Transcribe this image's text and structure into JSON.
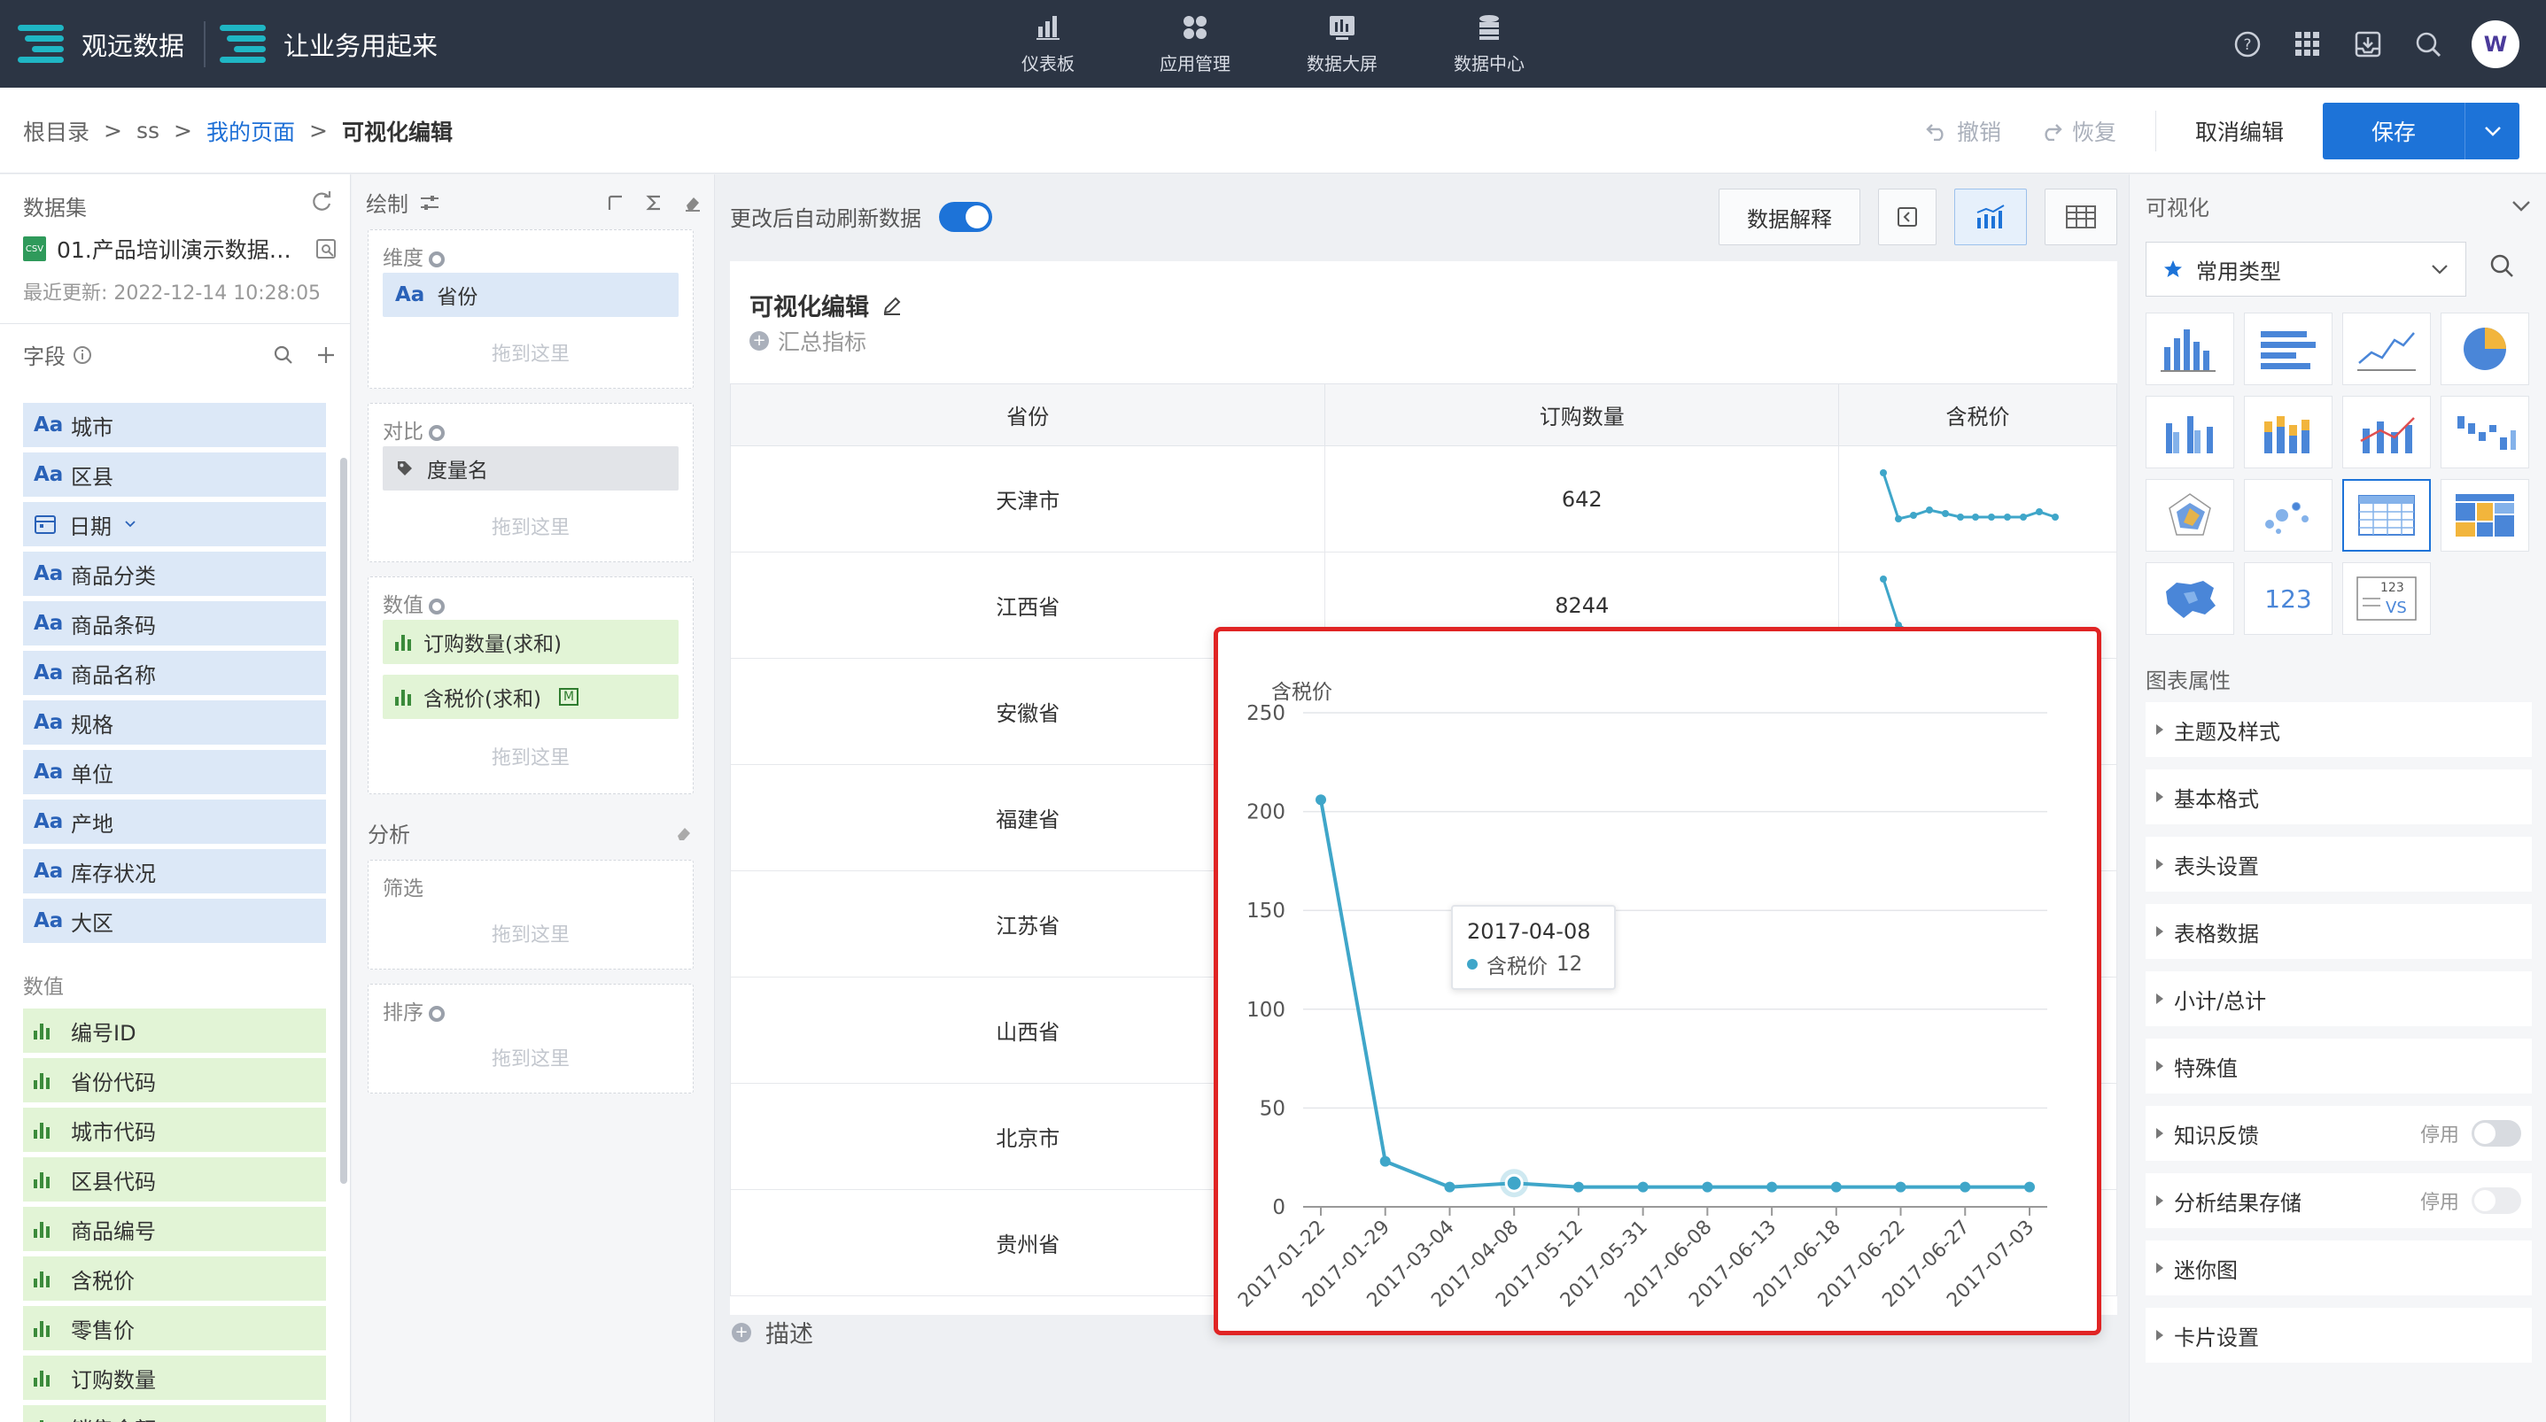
{
  "topbar": {
    "brand1": "观远数据",
    "brand2": "让业务用起来",
    "nav": [
      {
        "label": "仪表板",
        "icon": "dashboard-icon"
      },
      {
        "label": "应用管理",
        "icon": "apps-icon"
      },
      {
        "label": "数据大屏",
        "icon": "screen-icon"
      },
      {
        "label": "数据中心",
        "icon": "database-icon"
      }
    ],
    "icons": [
      "help-icon",
      "grid-icon",
      "download-icon",
      "search-icon"
    ],
    "avatar_text": "W"
  },
  "breadcrumb": {
    "items": [
      "根目录",
      "ss",
      "我的页面",
      "可视化编辑"
    ],
    "sep": ">"
  },
  "actions": {
    "undo": "撤销",
    "redo": "恢复",
    "cancel": "取消编辑",
    "save": "保存"
  },
  "dataset": {
    "title": "数据集",
    "file_name": "01.产品培训演示数据…",
    "file_badge": "CSV",
    "updated": "最近更新: 2022-12-14 10:28:05",
    "fields_title": "字段",
    "dims": [
      "城市",
      "区县",
      "日期",
      "商品分类",
      "商品条码",
      "商品名称",
      "规格",
      "单位",
      "产地",
      "库存状况",
      "大区"
    ],
    "dim_icon": "Aa",
    "measures_title": "数值",
    "measures": [
      "编号ID",
      "省份代码",
      "城市代码",
      "区县代码",
      "商品编号",
      "含税价",
      "零售价",
      "订购数量",
      "销售金额"
    ]
  },
  "config": {
    "title": "绘制",
    "dim_label": "维度",
    "dim_pill": "省份",
    "dim_icon": "Aa",
    "compare_label": "对比",
    "compare_pill": "度量名",
    "value_label": "数值",
    "value_pills": [
      "订购数量(求和)",
      "含税价(求和)"
    ],
    "value_badge": "M",
    "drop_hint": "拖到这里",
    "analysis_label": "分析",
    "filter_label": "筛选",
    "sort_label": "排序"
  },
  "center": {
    "auto_refresh": "更改后自动刷新数据",
    "explain_btn": "数据解释",
    "card_title": "可视化编辑",
    "summary": "汇总指标",
    "describe": "描述",
    "table": {
      "headers": [
        "省份",
        "订购数量",
        "含税价"
      ],
      "rows": [
        [
          "天津市",
          "642"
        ],
        [
          "江西省",
          "8244"
        ],
        [
          "安徽省",
          ""
        ],
        [
          "福建省",
          ""
        ],
        [
          "江苏省",
          ""
        ],
        [
          "山西省",
          ""
        ],
        [
          "北京市",
          ""
        ],
        [
          "贵州省",
          ""
        ]
      ]
    }
  },
  "chart_data": {
    "type": "line",
    "ylabel": "含税价",
    "x": [
      "2017-01-22",
      "2017-01-29",
      "2017-03-04",
      "2017-04-08",
      "2017-05-12",
      "2017-05-31",
      "2017-06-08",
      "2017-06-13",
      "2017-06-18",
      "2017-06-22",
      "2017-06-27",
      "2017-07-03"
    ],
    "values": [
      206,
      23,
      10,
      12,
      10,
      10,
      10,
      10,
      10,
      10,
      10,
      10
    ],
    "ylim": [
      0,
      250
    ],
    "yticks": [
      0,
      50,
      100,
      150,
      200,
      250
    ],
    "grid": true,
    "color": "#3fa6c9",
    "highlight_index": 3,
    "tooltip": {
      "date": "2017-04-08",
      "series": "含税价",
      "value": "12"
    }
  },
  "right": {
    "title": "可视化",
    "type_select": "常用类型",
    "props_title": "图表属性",
    "props": [
      "主题及样式",
      "基本格式",
      "表头设置",
      "表格数据",
      "小计/总计",
      "特殊值",
      "知识反馈",
      "分析结果存储",
      "迷你图",
      "卡片设置"
    ],
    "disabled_label": "停用",
    "icon_123": "123",
    "icon_vs": "VS"
  },
  "colors": {
    "accent": "#1d73d8",
    "topbar": "#2c3544",
    "dim_bg": "#dce8f7",
    "measure_bg": "#e2f4d6",
    "line": "#3fa6c9",
    "highlight_border": "#e02424"
  }
}
